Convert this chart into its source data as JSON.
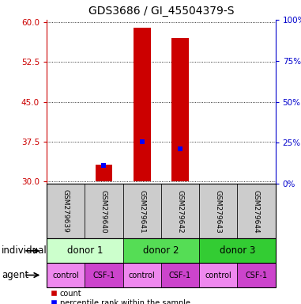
{
  "title": "GDS3686 / GI_45504379-S",
  "samples": [
    "GSM279639",
    "GSM279640",
    "GSM279641",
    "GSM279642",
    "GSM279643",
    "GSM279644"
  ],
  "baseline": 30,
  "count_values": [
    30.0,
    33.2,
    59.0,
    57.0,
    30.0,
    30.0
  ],
  "percentile_values": [
    null,
    33.0,
    37.4,
    36.2,
    null,
    null
  ],
  "ylim_left": [
    29.5,
    60.5
  ],
  "yticks_left": [
    30,
    37.5,
    45,
    52.5,
    60
  ],
  "yticks_right": [
    0,
    25,
    50,
    75,
    100
  ],
  "ylim_right": [
    0,
    100
  ],
  "left_color": "#cc0000",
  "right_color": "#0000cc",
  "bar_color": "#cc0000",
  "percentile_color": "#0000ff",
  "bar_width": 0.45,
  "individual_labels": [
    "donor 1",
    "donor 2",
    "donor 3"
  ],
  "individual_colors": [
    "#ccffcc",
    "#55dd55",
    "#33cc33"
  ],
  "agent_labels": [
    "control",
    "CSF-1",
    "control",
    "CSF-1",
    "control",
    "CSF-1"
  ],
  "agent_color_control": "#ee88ee",
  "agent_color_csf": "#cc44cc",
  "legend_count": "count",
  "legend_percentile": "percentile rank within the sample",
  "individual_row_label": "individual",
  "agent_row_label": "agent",
  "title_fontsize": 10,
  "tick_fontsize": 7.5,
  "label_fontsize": 8.5,
  "sample_label_fontsize": 6.5,
  "row_label_fontsize": 8.5,
  "sample_box_color": "#cccccc"
}
